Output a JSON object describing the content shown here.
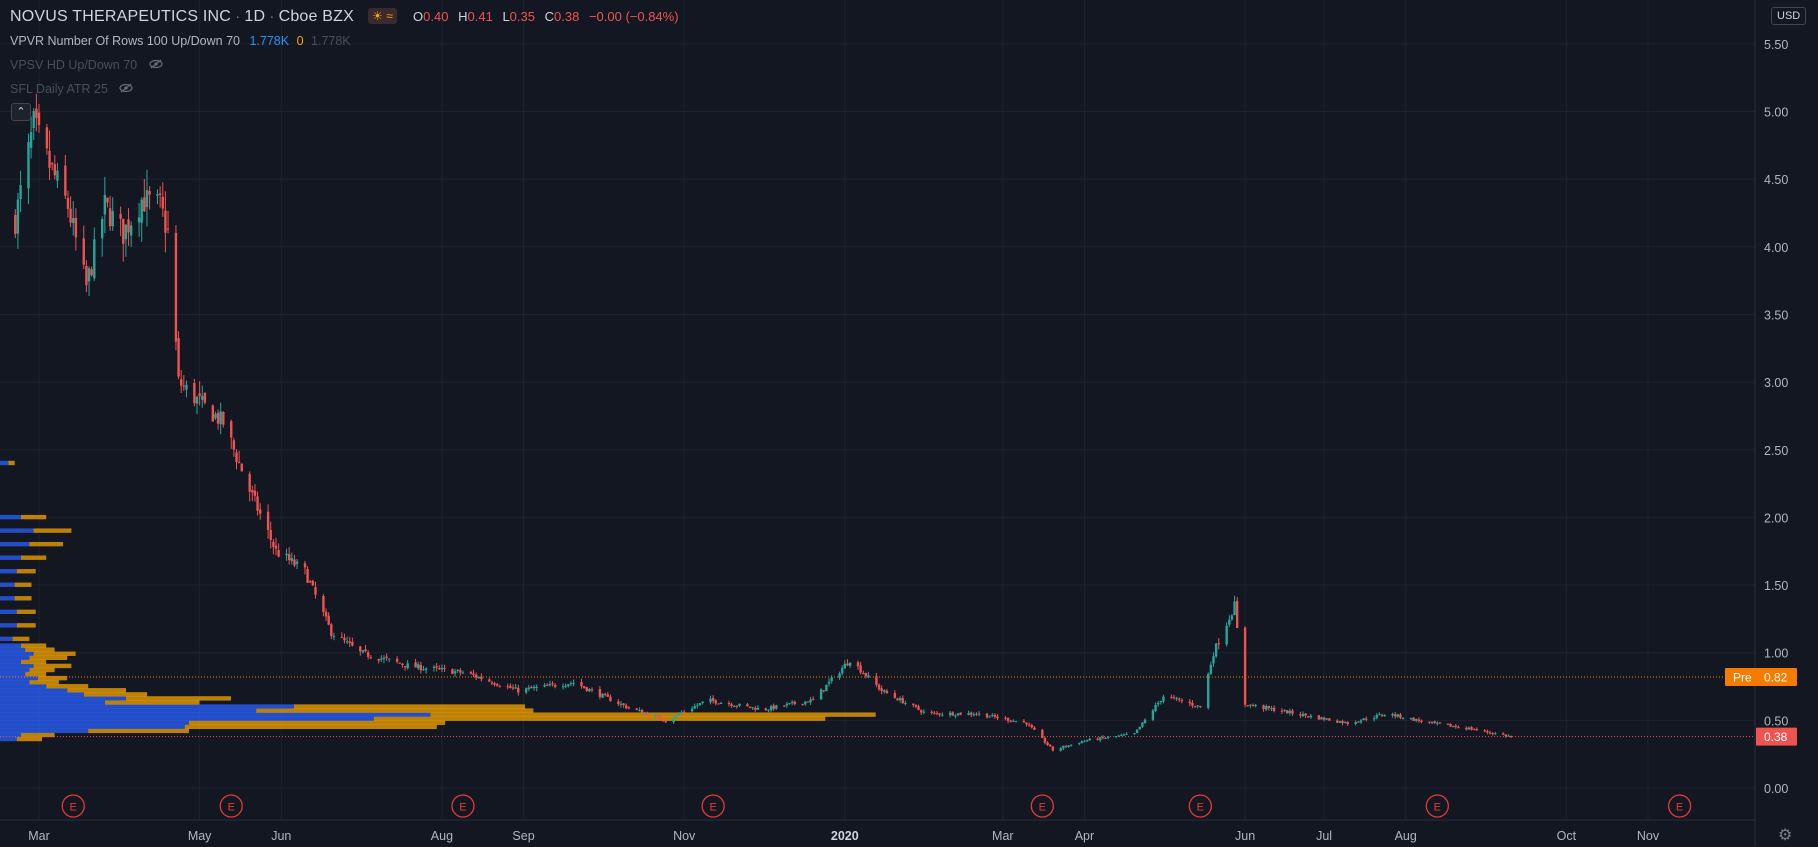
{
  "header": {
    "symbol": "NOVUS THERAPEUTICS INC",
    "interval": "1D",
    "exchange": "Cboe BZX",
    "o_label": "O",
    "o_value": "0.40",
    "h_label": "H",
    "h_value": "0.41",
    "l_label": "L",
    "l_value": "0.35",
    "c_label": "C",
    "c_value": "0.38",
    "change": "−0.00 (−0.84%)"
  },
  "indicators": {
    "vpvr_name": "VPVR",
    "vpvr_params": "Number Of Rows 100 Up/Down 70",
    "vpvr_up": "1.778K",
    "vpvr_down": "0",
    "vpvr_total": "1.778K",
    "vpsv": "VPSV HD Up/Down 70",
    "sfl": "SFL Daily ATR 25"
  },
  "currency_button": "USD",
  "colors": {
    "background": "#131722",
    "grid": "#1e222d",
    "up": "#26a69a",
    "down": "#ef5350",
    "vp_up": "#2962ff",
    "vp_down": "#f7a600",
    "pre": "#f57c00",
    "last": "#ef5350",
    "earnings": "#e53935"
  },
  "chart_data": {
    "type": "candlestick",
    "y_axis": {
      "ticks": [
        0.0,
        0.5,
        1.0,
        1.5,
        2.0,
        2.5,
        3.0,
        3.5,
        4.0,
        4.5,
        5.0,
        5.5
      ],
      "tick_labels": [
        "0.00",
        "0.50",
        "1.00",
        "1.50",
        "2.00",
        "2.50",
        "3.00",
        "3.50",
        "4.00",
        "4.50",
        "5.00",
        "5.50"
      ],
      "range": [
        -0.1,
        5.75
      ]
    },
    "x_axis": {
      "tick_labels": [
        "Mar",
        "May",
        "Jun",
        "Aug",
        "Sep",
        "Nov",
        "2020",
        "Mar",
        "Apr",
        "Jun",
        "Jul",
        "Aug",
        "Oct",
        "Nov"
      ],
      "tick_dates": [
        "2019-03-01",
        "2019-05-01",
        "2019-06-01",
        "2019-08-01",
        "2019-09-01",
        "2019-11-01",
        "2020-01-01",
        "2020-03-01",
        "2020-04-01",
        "2020-06-01",
        "2020-07-01",
        "2020-08-01",
        "2020-10-01",
        "2020-11-01"
      ],
      "bold_labels": [
        "2020"
      ]
    },
    "price_path": [
      {
        "date": "2019-02-20",
        "close": 4.2
      },
      {
        "date": "2019-02-27",
        "close": 4.9
      },
      {
        "date": "2019-03-05",
        "close": 4.6
      },
      {
        "date": "2019-03-12",
        "close": 4.3
      },
      {
        "date": "2019-03-19",
        "close": 3.7
      },
      {
        "date": "2019-03-26",
        "close": 4.3
      },
      {
        "date": "2019-04-02",
        "close": 4.1
      },
      {
        "date": "2019-04-09",
        "close": 4.35
      },
      {
        "date": "2019-04-16",
        "close": 4.3
      },
      {
        "date": "2019-04-19",
        "close": 4.1
      },
      {
        "date": "2019-04-23",
        "close": 3.0
      },
      {
        "date": "2019-05-01",
        "close": 2.85
      },
      {
        "date": "2019-05-10",
        "close": 2.7
      },
      {
        "date": "2019-05-20",
        "close": 2.2
      },
      {
        "date": "2019-05-30",
        "close": 1.75
      },
      {
        "date": "2019-06-10",
        "close": 1.6
      },
      {
        "date": "2019-06-20",
        "close": 1.15
      },
      {
        "date": "2019-07-01",
        "close": 1.0
      },
      {
        "date": "2019-07-20",
        "close": 0.9
      },
      {
        "date": "2019-08-10",
        "close": 0.85
      },
      {
        "date": "2019-08-30",
        "close": 0.72
      },
      {
        "date": "2019-09-20",
        "close": 0.78
      },
      {
        "date": "2019-10-10",
        "close": 0.6
      },
      {
        "date": "2019-10-25",
        "close": 0.5
      },
      {
        "date": "2019-11-10",
        "close": 0.65
      },
      {
        "date": "2019-12-01",
        "close": 0.58
      },
      {
        "date": "2019-12-20",
        "close": 0.65
      },
      {
        "date": "2020-01-03",
        "close": 0.95
      },
      {
        "date": "2020-01-15",
        "close": 0.72
      },
      {
        "date": "2020-02-01",
        "close": 0.55
      },
      {
        "date": "2020-02-20",
        "close": 0.55
      },
      {
        "date": "2020-03-10",
        "close": 0.48
      },
      {
        "date": "2020-03-20",
        "close": 0.28
      },
      {
        "date": "2020-04-01",
        "close": 0.35
      },
      {
        "date": "2020-04-20",
        "close": 0.4
      },
      {
        "date": "2020-05-01",
        "close": 0.68
      },
      {
        "date": "2020-05-15",
        "close": 0.6
      },
      {
        "date": "2020-05-20",
        "close": 1.0
      },
      {
        "date": "2020-05-28",
        "close": 1.35
      },
      {
        "date": "2020-06-01",
        "close": 0.62
      },
      {
        "date": "2020-06-20",
        "close": 0.55
      },
      {
        "date": "2020-07-10",
        "close": 0.48
      },
      {
        "date": "2020-07-25",
        "close": 0.55
      },
      {
        "date": "2020-08-10",
        "close": 0.48
      },
      {
        "date": "2020-08-25",
        "close": 0.44
      },
      {
        "date": "2020-09-10",
        "close": 0.38
      }
    ],
    "earnings_dates": [
      "2019-03-14",
      "2019-05-13",
      "2019-08-09",
      "2019-11-12",
      "2020-03-16",
      "2020-05-15",
      "2020-08-13",
      "2020-11-13"
    ],
    "earnings_label": "E",
    "lines": [
      {
        "label": "Pre",
        "value": 0.82
      },
      {
        "value": 0.38
      }
    ],
    "pre_tag_label": "Pre",
    "pre_tag_value": "0.82",
    "last_tag_value": "0.38",
    "volume_profile": {
      "price_levels": [
        0.36,
        0.39,
        0.42,
        0.45,
        0.48,
        0.51,
        0.54,
        0.57,
        0.6,
        0.63,
        0.66,
        0.69,
        0.72,
        0.75,
        0.78,
        0.81,
        0.84,
        0.87,
        0.9,
        0.93,
        0.96,
        0.99,
        1.02,
        1.05,
        1.1,
        1.2,
        1.3,
        1.4,
        1.5,
        1.6,
        1.7,
        1.8,
        1.9,
        2.0,
        2.4
      ],
      "up": [
        8,
        10,
        42,
        88,
        90,
        178,
        205,
        122,
        140,
        50,
        60,
        40,
        32,
        22,
        14,
        18,
        12,
        14,
        16,
        10,
        14,
        16,
        12,
        10,
        6,
        8,
        8,
        7,
        7,
        8,
        10,
        14,
        16,
        10,
        4
      ],
      "down": [
        12,
        16,
        48,
        120,
        122,
        215,
        212,
        132,
        110,
        45,
        50,
        30,
        28,
        20,
        14,
        14,
        10,
        12,
        18,
        12,
        18,
        20,
        14,
        12,
        8,
        9,
        9,
        8,
        8,
        9,
        12,
        16,
        18,
        12,
        3
      ]
    }
  }
}
